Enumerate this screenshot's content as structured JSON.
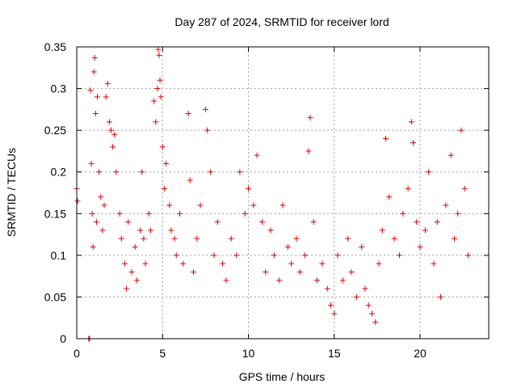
{
  "chart_data": {
    "type": "scatter",
    "title": "Day 287 of 2024, SRMTID for receiver lord",
    "xlabel": "GPS time / hours",
    "ylabel": "SRMTID / TECUs",
    "xlim": [
      0,
      24
    ],
    "ylim": [
      0,
      0.35
    ],
    "xticks": [
      0,
      5,
      10,
      15,
      20
    ],
    "xtick_labels": [
      "0",
      "5",
      "10",
      "15",
      "20"
    ],
    "yticks": [
      0,
      0.05,
      0.1,
      0.15,
      0.2,
      0.25,
      0.3,
      0.35
    ],
    "ytick_labels": [
      "0",
      "0.05",
      "0.1",
      "0.15",
      "0.2",
      "0.25",
      "0.3",
      "0.35"
    ],
    "grid": true,
    "legend": "none",
    "marker": "plus",
    "series": [
      {
        "color": "#e00000",
        "points": [
          [
            0.0,
            0.18
          ],
          [
            0.05,
            0.165
          ],
          [
            0.7,
            0.0
          ],
          [
            0.72,
            0.0
          ],
          [
            0.75,
            0.0
          ],
          [
            0.8,
            0.298
          ],
          [
            0.85,
            0.21
          ],
          [
            0.9,
            0.15
          ],
          [
            0.95,
            0.11
          ],
          [
            1.0,
            0.32
          ],
          [
            1.05,
            0.337
          ],
          [
            1.1,
            0.27
          ],
          [
            1.15,
            0.14
          ],
          [
            1.2,
            0.29
          ],
          [
            1.3,
            0.2
          ],
          [
            1.4,
            0.17
          ],
          [
            1.5,
            0.13
          ],
          [
            1.6,
            0.16
          ],
          [
            1.7,
            0.29
          ],
          [
            1.8,
            0.306
          ],
          [
            1.9,
            0.26
          ],
          [
            2.0,
            0.25
          ],
          [
            2.1,
            0.23
          ],
          [
            2.2,
            0.245
          ],
          [
            2.3,
            0.2
          ],
          [
            2.5,
            0.15
          ],
          [
            2.6,
            0.12
          ],
          [
            2.8,
            0.09
          ],
          [
            2.9,
            0.06
          ],
          [
            3.0,
            0.14
          ],
          [
            3.2,
            0.08
          ],
          [
            3.4,
            0.11
          ],
          [
            3.5,
            0.07
          ],
          [
            3.7,
            0.13
          ],
          [
            3.8,
            0.2
          ],
          [
            3.9,
            0.12
          ],
          [
            4.0,
            0.09
          ],
          [
            4.2,
            0.15
          ],
          [
            4.3,
            0.13
          ],
          [
            4.5,
            0.285
          ],
          [
            4.6,
            0.26
          ],
          [
            4.7,
            0.3
          ],
          [
            4.75,
            0.347
          ],
          [
            4.8,
            0.34
          ],
          [
            4.85,
            0.31
          ],
          [
            4.9,
            0.29
          ],
          [
            5.0,
            0.23
          ],
          [
            5.1,
            0.18
          ],
          [
            5.2,
            0.21
          ],
          [
            5.4,
            0.16
          ],
          [
            5.5,
            0.13
          ],
          [
            5.7,
            0.12
          ],
          [
            5.8,
            0.1
          ],
          [
            6.0,
            0.15
          ],
          [
            6.2,
            0.09
          ],
          [
            6.5,
            0.27
          ],
          [
            6.6,
            0.19
          ],
          [
            6.8,
            0.08
          ],
          [
            7.0,
            0.12
          ],
          [
            7.2,
            0.16
          ],
          [
            7.5,
            0.275
          ],
          [
            7.6,
            0.25
          ],
          [
            7.8,
            0.2
          ],
          [
            8.0,
            0.1
          ],
          [
            8.2,
            0.14
          ],
          [
            8.5,
            0.09
          ],
          [
            8.7,
            0.07
          ],
          [
            9.0,
            0.12
          ],
          [
            9.3,
            0.1
          ],
          [
            9.5,
            0.2
          ],
          [
            9.8,
            0.15
          ],
          [
            10.0,
            0.18
          ],
          [
            10.3,
            0.16
          ],
          [
            10.5,
            0.22
          ],
          [
            10.8,
            0.14
          ],
          [
            11.0,
            0.08
          ],
          [
            11.3,
            0.13
          ],
          [
            11.5,
            0.1
          ],
          [
            11.8,
            0.07
          ],
          [
            12.0,
            0.16
          ],
          [
            12.3,
            0.11
          ],
          [
            12.5,
            0.09
          ],
          [
            12.8,
            0.12
          ],
          [
            13.0,
            0.08
          ],
          [
            13.3,
            0.1
          ],
          [
            13.5,
            0.225
          ],
          [
            13.6,
            0.265
          ],
          [
            13.8,
            0.14
          ],
          [
            14.0,
            0.07
          ],
          [
            14.3,
            0.09
          ],
          [
            14.6,
            0.06
          ],
          [
            14.8,
            0.04
          ],
          [
            15.0,
            0.03
          ],
          [
            15.2,
            0.1
          ],
          [
            15.5,
            0.07
          ],
          [
            15.8,
            0.12
          ],
          [
            16.0,
            0.08
          ],
          [
            16.3,
            0.05
          ],
          [
            16.6,
            0.11
          ],
          [
            16.8,
            0.06
          ],
          [
            17.0,
            0.04
          ],
          [
            17.2,
            0.03
          ],
          [
            17.4,
            0.02
          ],
          [
            17.6,
            0.09
          ],
          [
            17.8,
            0.13
          ],
          [
            18.0,
            0.24
          ],
          [
            18.2,
            0.17
          ],
          [
            18.5,
            0.12
          ],
          [
            18.8,
            0.1
          ],
          [
            19.0,
            0.15
          ],
          [
            19.3,
            0.18
          ],
          [
            19.5,
            0.26
          ],
          [
            19.6,
            0.235
          ],
          [
            19.8,
            0.14
          ],
          [
            20.0,
            0.11
          ],
          [
            20.3,
            0.13
          ],
          [
            20.5,
            0.2
          ],
          [
            20.8,
            0.09
          ],
          [
            21.0,
            0.14
          ],
          [
            21.2,
            0.05
          ],
          [
            21.5,
            0.16
          ],
          [
            21.8,
            0.22
          ],
          [
            22.0,
            0.12
          ],
          [
            22.2,
            0.15
          ],
          [
            22.4,
            0.25
          ],
          [
            22.6,
            0.18
          ],
          [
            22.8,
            0.1
          ]
        ]
      }
    ]
  }
}
